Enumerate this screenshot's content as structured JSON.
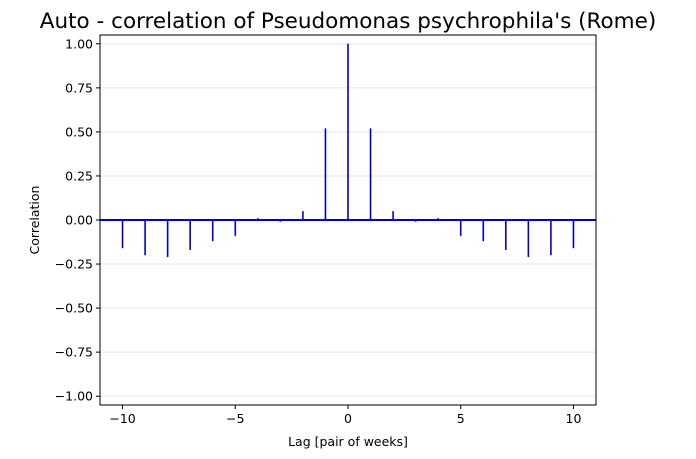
{
  "chart_data": {
    "type": "bar",
    "style": "stem",
    "title": "Auto - correlation of Pseudomonas psychrophila's (Rome)",
    "xlabel": "Lag [pair of weeks]",
    "ylabel": "Correlation",
    "xlim": [
      -11,
      11
    ],
    "ylim": [
      -1.05,
      1.05
    ],
    "x_ticks": [
      -10,
      -5,
      0,
      5,
      10
    ],
    "y_ticks": [
      -1.0,
      -0.75,
      -0.5,
      -0.25,
      0.0,
      0.25,
      0.5,
      0.75,
      1.0
    ],
    "x_tick_labels": [
      "−10",
      "−5",
      "0",
      "5",
      "10"
    ],
    "y_tick_labels": [
      "−1.00",
      "−0.75",
      "−0.50",
      "−0.25",
      "0.00",
      "0.25",
      "0.50",
      "0.75",
      "1.00"
    ],
    "grid": "horizontal",
    "color": "#0000cc",
    "baseline": 0,
    "x": [
      -10,
      -9,
      -8,
      -7,
      -6,
      -5,
      -4,
      -3,
      -2,
      -1,
      0,
      1,
      2,
      3,
      4,
      5,
      6,
      7,
      8,
      9,
      10
    ],
    "values": [
      -0.16,
      -0.2,
      -0.21,
      -0.17,
      -0.12,
      -0.09,
      0.01,
      -0.01,
      0.05,
      0.52,
      1.0,
      0.52,
      0.05,
      -0.01,
      0.01,
      -0.09,
      -0.12,
      -0.17,
      -0.21,
      -0.2,
      -0.16
    ]
  }
}
